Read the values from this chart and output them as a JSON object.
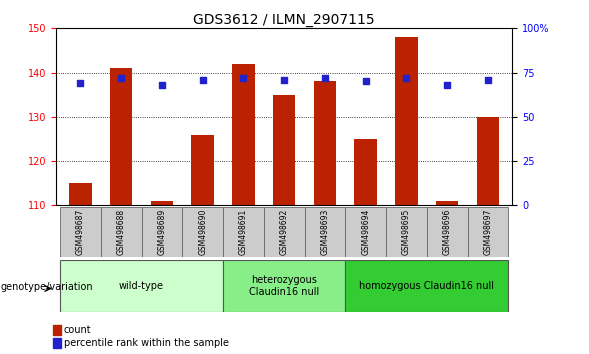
{
  "title": "GDS3612 / ILMN_2907115",
  "samples": [
    "GSM498687",
    "GSM498688",
    "GSM498689",
    "GSM498690",
    "GSM498691",
    "GSM498692",
    "GSM498693",
    "GSM498694",
    "GSM498695",
    "GSM498696",
    "GSM498697"
  ],
  "counts": [
    115,
    141,
    111,
    126,
    142,
    135,
    138,
    125,
    148,
    111,
    130
  ],
  "percentile_ranks": [
    69,
    72,
    68,
    71,
    72,
    71,
    72,
    70,
    72,
    68,
    71
  ],
  "ylim_left": [
    110,
    150
  ],
  "ylim_right": [
    0,
    100
  ],
  "yticks_left": [
    110,
    120,
    130,
    140,
    150
  ],
  "yticks_right": [
    0,
    25,
    50,
    75,
    100
  ],
  "ytick_right_labels": [
    "0",
    "25",
    "50",
    "75",
    "100%"
  ],
  "bar_color": "#bb2200",
  "dot_color": "#2222cc",
  "plot_bg_color": "#ffffff",
  "sample_box_color": "#cccccc",
  "groups": [
    {
      "label": "wild-type",
      "start": 0,
      "end": 3,
      "color": "#ccffcc"
    },
    {
      "label": "heterozygous\nClaudin16 null",
      "start": 4,
      "end": 6,
      "color": "#88ee88"
    },
    {
      "label": "homozygous Claudin16 null",
      "start": 7,
      "end": 10,
      "color": "#33cc33"
    }
  ],
  "genotype_label": "genotype/variation",
  "legend_count_label": "count",
  "legend_pct_label": "percentile rank within the sample",
  "title_fontsize": 10,
  "tick_fontsize": 7,
  "sample_fontsize": 5.5,
  "group_fontsize": 7,
  "legend_fontsize": 7,
  "genotype_fontsize": 7
}
